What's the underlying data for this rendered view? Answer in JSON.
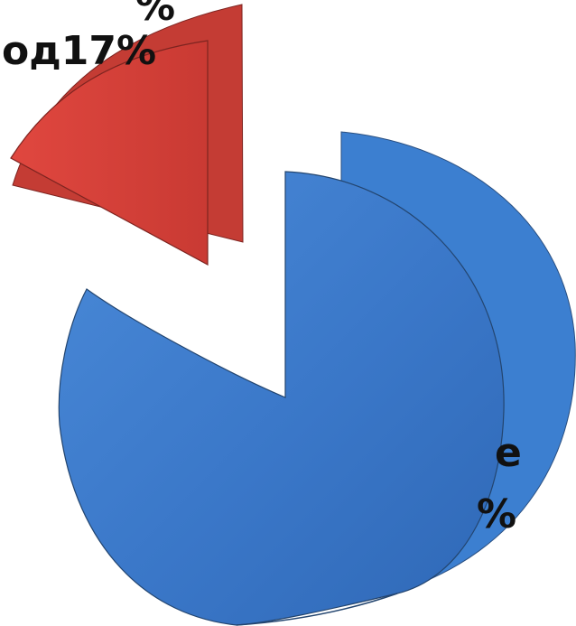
{
  "chart_data": {
    "type": "pie",
    "style": "3d-exploded",
    "slices": [
      {
        "name": "",
        "value": 17,
        "label": "од17%",
        "label_fragment": "%",
        "color": "#d9403a",
        "edge_color": "#c43c34",
        "exploded": true
      },
      {
        "name": "",
        "value": 83,
        "label_fragments": [
          "е",
          "%"
        ],
        "color": "#3f7fd0",
        "edge_color": "#3c7fd0",
        "exploded": false
      }
    ],
    "legend": "none",
    "title": ""
  }
}
